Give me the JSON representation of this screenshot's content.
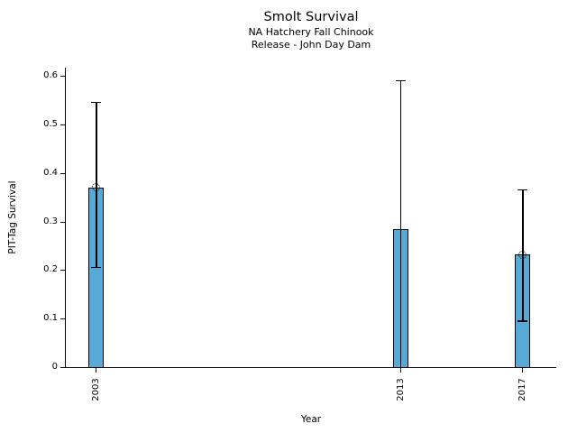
{
  "chart_data": {
    "type": "bar",
    "title": "Smolt Survival",
    "subtitles": [
      "NA Hatchery Fall Chinook",
      "Release - John Day Dam"
    ],
    "xlabel": "Year",
    "ylabel": "PIT-Tag Survival",
    "categories": [
      "2003",
      "2013",
      "2017"
    ],
    "x_numeric": [
      2003,
      2013,
      2017
    ],
    "values": [
      0.37,
      0.285,
      0.232
    ],
    "error_low": [
      0.205,
      0.0,
      0.095
    ],
    "error_high": [
      0.545,
      0.59,
      0.365
    ],
    "error_low_cap": [
      true,
      false,
      true
    ],
    "markers": [
      true,
      false,
      true
    ],
    "yticks": [
      0,
      0.1,
      0.2,
      0.3,
      0.4,
      0.5,
      0.6
    ],
    "ytick_labels": [
      "0",
      "0.1",
      "0.2",
      "0.3",
      "0.4",
      "0.5",
      "0.6"
    ],
    "ylim": [
      0,
      0.617
    ],
    "xlim": [
      2002,
      2018.1
    ],
    "bar_color": "#57A9D6",
    "bar_edge_color": "#000000",
    "errorbar_color": "#000000",
    "grid": false,
    "legend_position": "none"
  }
}
